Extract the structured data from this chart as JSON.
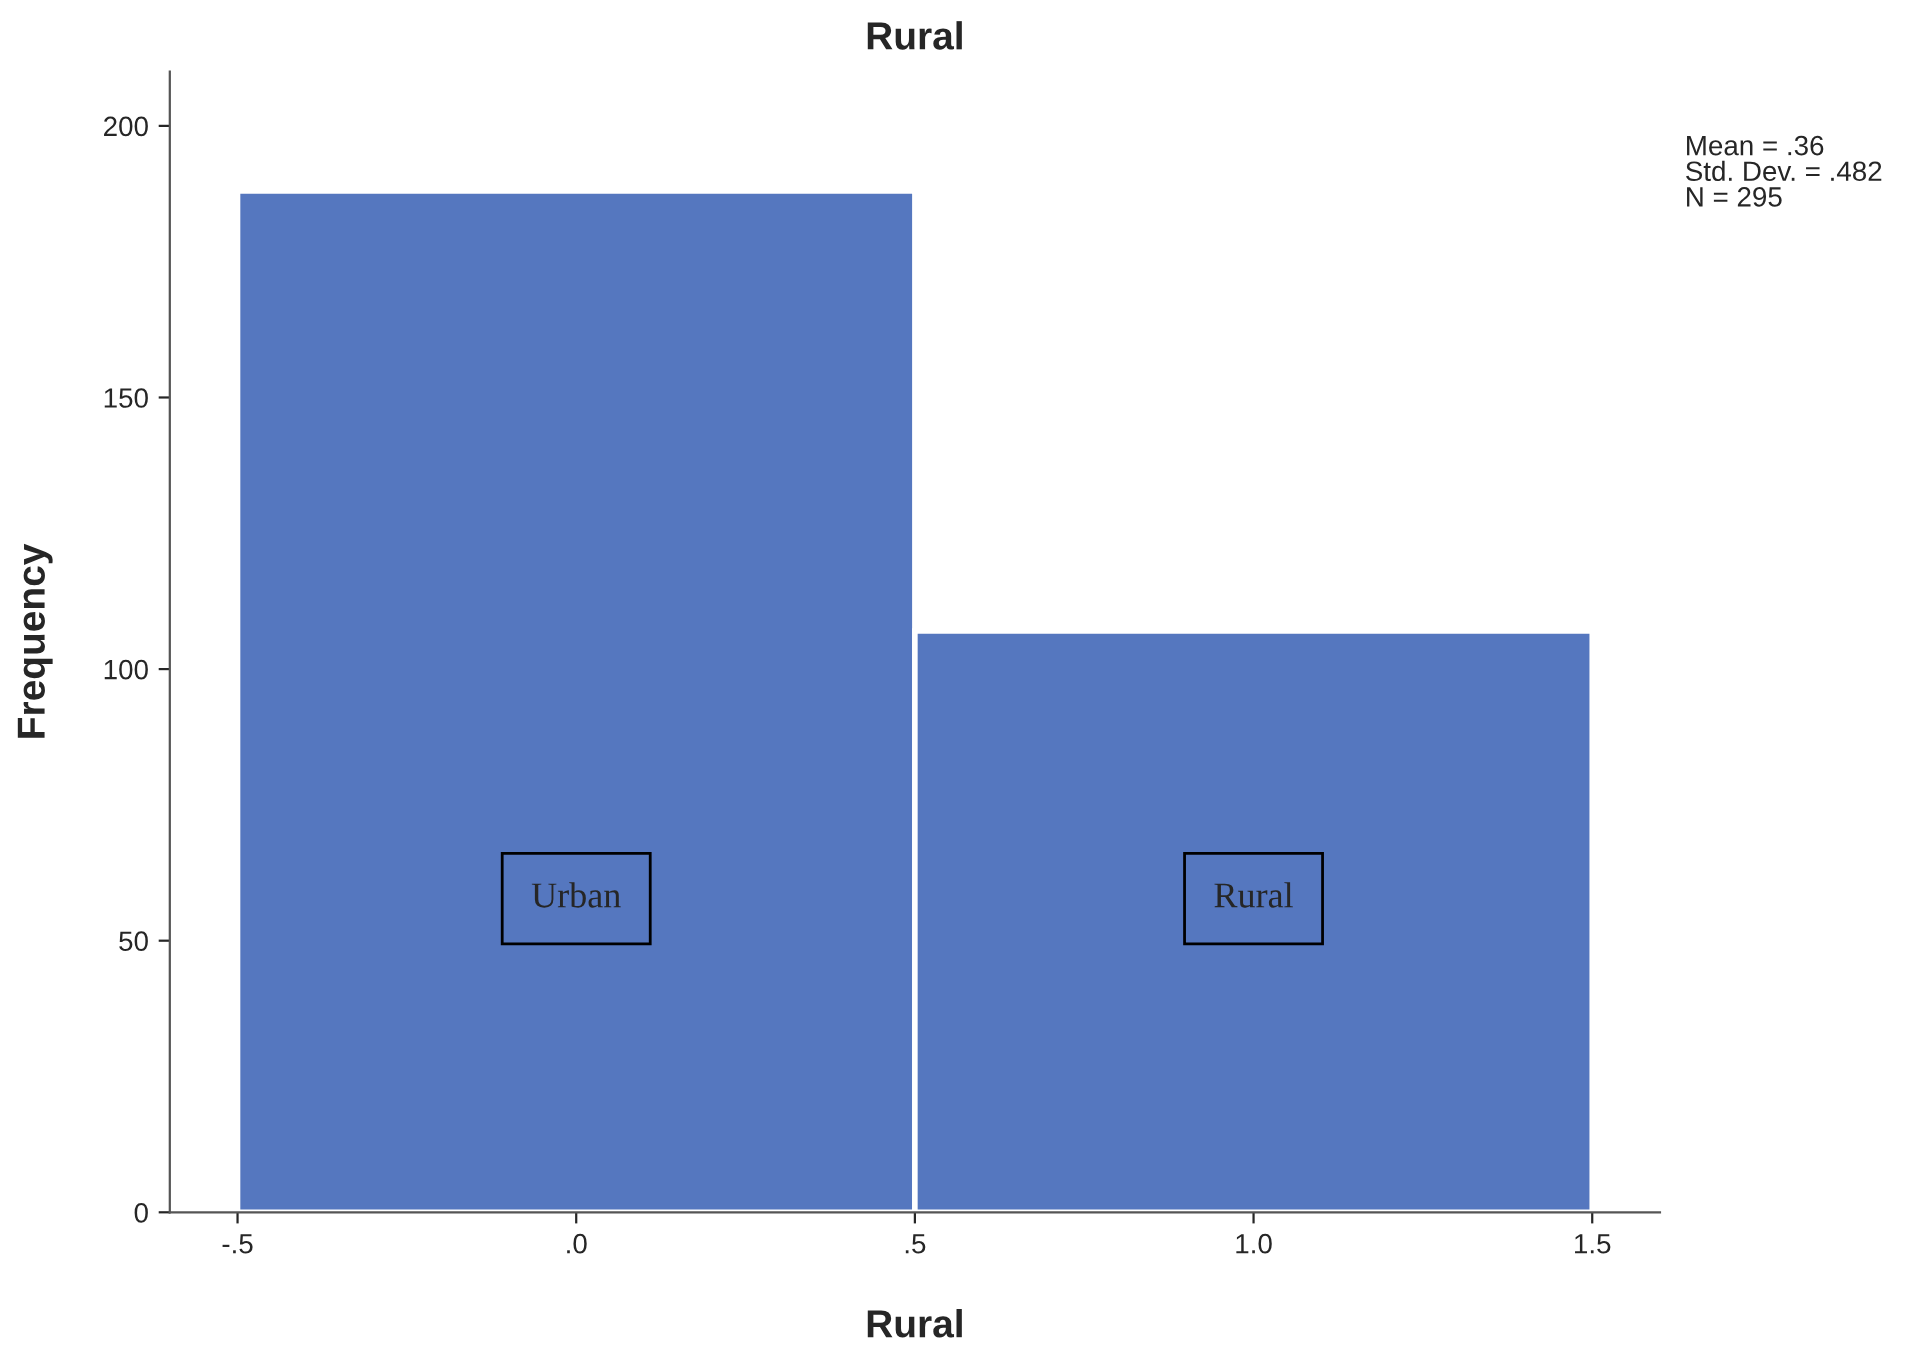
{
  "chart_data": {
    "type": "histogram",
    "title": "Rural",
    "xlabel": "Rural",
    "ylabel": "Frequency",
    "bins": [
      -0.5,
      0.5,
      1.5
    ],
    "values": [
      188,
      107
    ],
    "color": "#5577bf",
    "xlim": [
      -0.6,
      1.6
    ],
    "xticks": [
      {
        "value": -0.5,
        "label": "-.5"
      },
      {
        "value": 0,
        "label": ".0"
      },
      {
        "value": 0.5,
        "label": ".5"
      },
      {
        "value": 1,
        "label": "1.0"
      },
      {
        "value": 1.5,
        "label": "1.5"
      }
    ],
    "ylim": [
      0,
      210
    ],
    "yticks": [
      0,
      50,
      100,
      150,
      200
    ],
    "grid": false,
    "annotations": [
      "Urban",
      "Rural",
      "Mean = .36",
      "Std. Dev. = .482",
      "N = 295"
    ]
  }
}
